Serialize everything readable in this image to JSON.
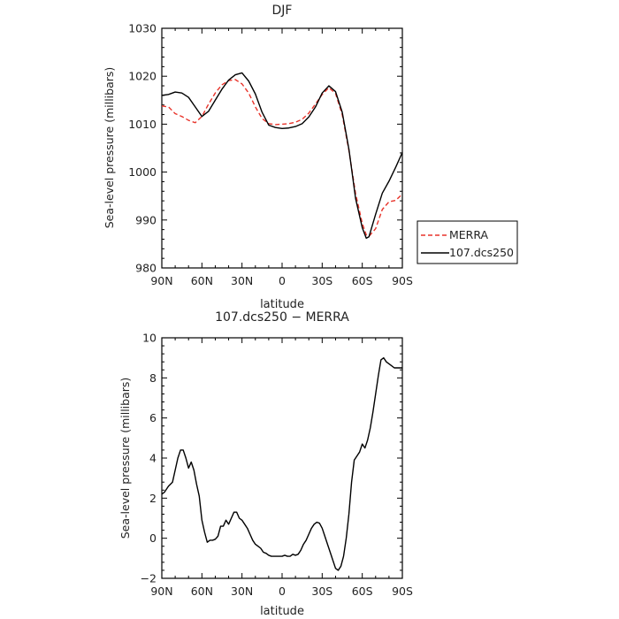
{
  "chart_data": [
    {
      "type": "line",
      "title": "DJF",
      "xlabel": "latitude",
      "ylabel": "Sea-level pressure (millibars)",
      "xlim": [
        90,
        -90
      ],
      "ylim": [
        980,
        1030
      ],
      "x_ticks": [
        90,
        60,
        30,
        0,
        -30,
        -60,
        -90
      ],
      "x_tick_labels": [
        "90N",
        "60N",
        "30N",
        "0",
        "30S",
        "60S",
        "90S"
      ],
      "y_ticks": [
        980,
        990,
        1000,
        1010,
        1020,
        1030
      ],
      "y_tick_labels": [
        "980",
        "990",
        "1000",
        "1010",
        "1020",
        "1030"
      ],
      "grid": false,
      "legend": "right",
      "series": [
        {
          "name": "MERRA",
          "color": "#e8332a",
          "dash": "dashed",
          "x": [
            90,
            85,
            80,
            75,
            70,
            65,
            60,
            55,
            50,
            45,
            40,
            35,
            30,
            25,
            20,
            15,
            10,
            5,
            0,
            -5,
            -10,
            -15,
            -20,
            -25,
            -30,
            -35,
            -40,
            -45,
            -50,
            -55,
            -60,
            -63,
            -65,
            -70,
            -75,
            -80,
            -85,
            -90
          ],
          "y": [
            1013.8,
            1013.6,
            1012.2,
            1011.6,
            1010.8,
            1010.3,
            1011.6,
            1014.2,
            1016.5,
            1018.2,
            1019.1,
            1019.3,
            1018.4,
            1016.5,
            1013.6,
            1011.2,
            1010.1,
            1009.9,
            1010.0,
            1010.1,
            1010.4,
            1011.0,
            1012.3,
            1014.2,
            1016.2,
            1017.6,
            1016.4,
            1012.0,
            1004.5,
            995.5,
            989.3,
            986.9,
            986.6,
            988.2,
            992.2,
            993.8,
            994.1,
            995.4
          ]
        },
        {
          "name": "107.dcs250",
          "color": "#000000",
          "dash": "solid",
          "x": [
            90,
            85,
            80,
            75,
            70,
            65,
            60,
            55,
            50,
            45,
            40,
            35,
            30,
            25,
            20,
            15,
            10,
            5,
            0,
            -5,
            -10,
            -15,
            -20,
            -25,
            -30,
            -35,
            -40,
            -45,
            -50,
            -55,
            -60,
            -63,
            -65,
            -70,
            -75,
            -80,
            -85,
            -90
          ],
          "y": [
            1016.0,
            1016.2,
            1016.7,
            1016.5,
            1015.6,
            1013.6,
            1011.6,
            1012.7,
            1015.0,
            1017.3,
            1019.2,
            1020.3,
            1020.7,
            1019.0,
            1016.3,
            1012.5,
            1009.8,
            1009.3,
            1009.1,
            1009.2,
            1009.5,
            1010.1,
            1011.5,
            1013.6,
            1016.5,
            1018.0,
            1016.8,
            1012.5,
            1004.8,
            994.5,
            988.4,
            986.2,
            986.5,
            991.2,
            995.6,
            998.1,
            1001.0,
            1004.1
          ]
        }
      ]
    },
    {
      "type": "line",
      "title": "107.dcs250 − MERRA",
      "xlabel": "latitude",
      "ylabel": "Sea-level pressure (millibars)",
      "xlim": [
        90,
        -90
      ],
      "ylim": [
        -2,
        10
      ],
      "x_ticks": [
        90,
        60,
        30,
        0,
        -30,
        -60,
        -90
      ],
      "x_tick_labels": [
        "90N",
        "60N",
        "30N",
        "0",
        "30S",
        "60S",
        "90S"
      ],
      "y_ticks": [
        -2,
        0,
        2,
        4,
        6,
        8,
        10
      ],
      "y_tick_labels": [
        "−2",
        "0",
        "2",
        "4",
        "6",
        "8",
        "10"
      ],
      "grid": false,
      "series": [
        {
          "name": "107.dcs250 − MERRA",
          "color": "#000000",
          "dash": "solid",
          "x": [
            90,
            88,
            85,
            82,
            80,
            78,
            76,
            74,
            72,
            70,
            68,
            66,
            64,
            62,
            60,
            58,
            56,
            54,
            52,
            50,
            48,
            46,
            44,
            42,
            40,
            38,
            36,
            34,
            32,
            30,
            28,
            26,
            24,
            22,
            20,
            18,
            16,
            14,
            12,
            10,
            8,
            6,
            4,
            2,
            0,
            -2,
            -4,
            -6,
            -8,
            -10,
            -12,
            -14,
            -16,
            -18,
            -20,
            -22,
            -24,
            -26,
            -28,
            -30,
            -32,
            -34,
            -36,
            -38,
            -40,
            -42,
            -44,
            -46,
            -48,
            -50,
            -52,
            -54,
            -56,
            -58,
            -60,
            -62,
            -64,
            -66,
            -68,
            -70,
            -72,
            -74,
            -76,
            -78,
            -80,
            -82,
            -84,
            -86,
            -88,
            -90
          ],
          "y": [
            2.2,
            2.3,
            2.6,
            2.8,
            3.4,
            4.0,
            4.4,
            4.4,
            4.0,
            3.5,
            3.8,
            3.4,
            2.7,
            2.1,
            0.9,
            0.3,
            -0.2,
            -0.1,
            -0.1,
            -0.05,
            0.1,
            0.6,
            0.6,
            0.9,
            0.7,
            1.0,
            1.3,
            1.3,
            1.0,
            0.9,
            0.7,
            0.5,
            0.2,
            -0.1,
            -0.3,
            -0.4,
            -0.5,
            -0.7,
            -0.75,
            -0.85,
            -0.9,
            -0.9,
            -0.9,
            -0.9,
            -0.9,
            -0.85,
            -0.9,
            -0.9,
            -0.8,
            -0.85,
            -0.8,
            -0.6,
            -0.3,
            -0.1,
            0.2,
            0.5,
            0.7,
            0.8,
            0.75,
            0.5,
            0.1,
            -0.3,
            -0.7,
            -1.1,
            -1.5,
            -1.6,
            -1.4,
            -0.9,
            0.0,
            1.2,
            2.8,
            3.9,
            4.1,
            4.3,
            4.7,
            4.5,
            4.9,
            5.5,
            6.3,
            7.2,
            8.1,
            8.9,
            9.0,
            8.8,
            8.7,
            8.6,
            8.5,
            8.5,
            8.5,
            8.5
          ]
        }
      ]
    }
  ]
}
